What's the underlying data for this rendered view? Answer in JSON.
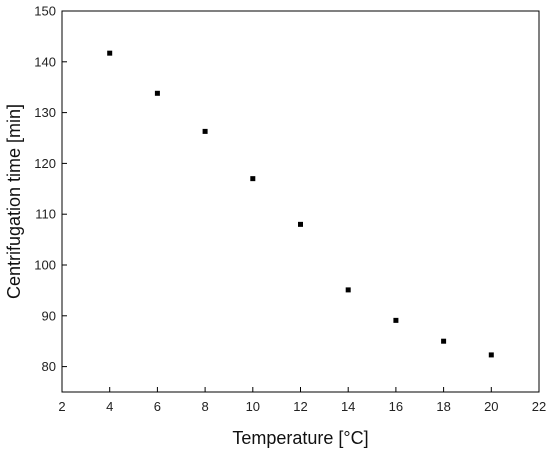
{
  "chart_data": {
    "type": "scatter",
    "title": "",
    "xlabel": "Temperature [°C]",
    "ylabel": "Centrifugation time [min]",
    "xlim": [
      2,
      22
    ],
    "ylim": [
      75,
      150
    ],
    "xticks": [
      2,
      4,
      6,
      8,
      10,
      12,
      14,
      16,
      18,
      20,
      22
    ],
    "yticks": [
      80,
      90,
      100,
      110,
      120,
      130,
      140,
      150
    ],
    "grid": false,
    "legend": "none",
    "marker": "square",
    "colors": {
      "marker": "#000000",
      "axis": "#000000"
    },
    "series": [
      {
        "x": [
          4,
          6,
          8,
          10,
          12,
          14,
          16,
          18,
          20
        ],
        "y": [
          141.7,
          133.8,
          126.3,
          117.0,
          108.0,
          95.1,
          89.1,
          85.0,
          82.3
        ]
      }
    ]
  }
}
